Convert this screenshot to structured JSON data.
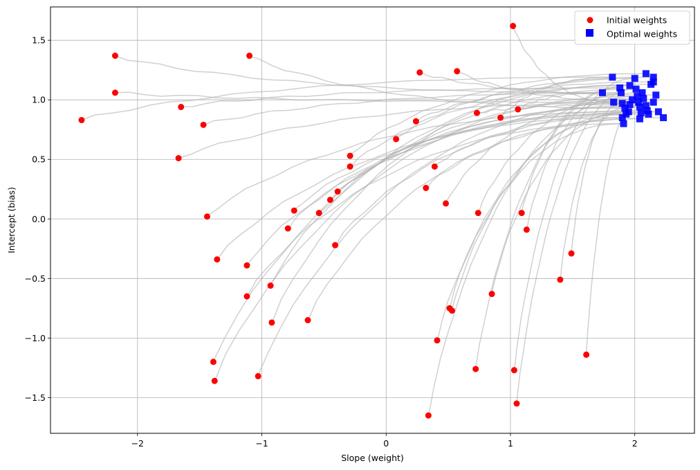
{
  "chart_data": {
    "type": "scatter",
    "title": "",
    "xlabel": "Slope (weight)",
    "ylabel": "Intercept (bias)",
    "xlim": [
      -2.7,
      2.48
    ],
    "ylim": [
      -1.8,
      1.78
    ],
    "xticks": [
      -2,
      -1,
      0,
      1,
      2
    ],
    "yticks": [
      -1.5,
      -1.0,
      -0.5,
      0.0,
      0.5,
      1.0,
      1.5
    ],
    "grid": true,
    "legend_position": "top-right",
    "colors": {
      "initial": "#ff0000",
      "optimal": "#0000ff",
      "path": "#b0b0b0",
      "grid": "#b0b0b0"
    },
    "series": [
      {
        "name": "Initial weights",
        "marker": "circle",
        "points": [
          [
            -2.45,
            0.83
          ],
          [
            -2.18,
            1.37
          ],
          [
            -2.18,
            1.06
          ],
          [
            -1.65,
            0.94
          ],
          [
            -1.47,
            0.79
          ],
          [
            -1.67,
            0.51
          ],
          [
            -1.1,
            1.37
          ],
          [
            -1.44,
            0.02
          ],
          [
            -1.36,
            -0.34
          ],
          [
            -1.12,
            -0.39
          ],
          [
            -1.12,
            -0.65
          ],
          [
            -0.93,
            -0.56
          ],
          [
            -0.92,
            -0.87
          ],
          [
            -1.39,
            -1.2
          ],
          [
            -1.38,
            -1.36
          ],
          [
            -1.03,
            -1.32
          ],
          [
            -0.79,
            -0.08
          ],
          [
            -0.74,
            0.07
          ],
          [
            -0.63,
            -0.85
          ],
          [
            -0.54,
            0.05
          ],
          [
            -0.45,
            0.16
          ],
          [
            -0.39,
            0.23
          ],
          [
            -0.41,
            -0.22
          ],
          [
            -0.29,
            0.53
          ],
          [
            -0.29,
            0.44
          ],
          [
            0.08,
            0.67
          ],
          [
            0.24,
            0.82
          ],
          [
            0.27,
            1.23
          ],
          [
            0.57,
            1.24
          ],
          [
            0.39,
            0.44
          ],
          [
            0.32,
            0.26
          ],
          [
            0.48,
            0.13
          ],
          [
            0.74,
            0.05
          ],
          [
            0.73,
            0.89
          ],
          [
            0.92,
            0.85
          ],
          [
            1.06,
            0.92
          ],
          [
            1.02,
            1.62
          ],
          [
            1.09,
            0.05
          ],
          [
            1.13,
            -0.09
          ],
          [
            1.49,
            -0.29
          ],
          [
            1.4,
            -0.51
          ],
          [
            0.85,
            -0.63
          ],
          [
            0.51,
            -0.75
          ],
          [
            0.53,
            -0.77
          ],
          [
            0.41,
            -1.02
          ],
          [
            0.72,
            -1.26
          ],
          [
            1.03,
            -1.27
          ],
          [
            1.05,
            -1.55
          ],
          [
            0.34,
            -1.65
          ],
          [
            1.61,
            -1.14
          ]
        ]
      },
      {
        "name": "Optimal weights",
        "marker": "square",
        "points": [
          [
            1.82,
            1.19
          ],
          [
            1.74,
            1.06
          ],
          [
            1.83,
            0.98
          ],
          [
            1.88,
            1.1
          ],
          [
            1.89,
            1.06
          ],
          [
            1.9,
            0.97
          ],
          [
            1.92,
            0.93
          ],
          [
            1.95,
            0.9
          ],
          [
            1.9,
            0.85
          ],
          [
            1.93,
            0.88
          ],
          [
            1.91,
            0.8
          ],
          [
            1.96,
            1.12
          ],
          [
            2.0,
            1.18
          ],
          [
            2.01,
            1.09
          ],
          [
            2.02,
            1.03
          ],
          [
            2.03,
            0.98
          ],
          [
            2.04,
            0.94
          ],
          [
            2.05,
            0.89
          ],
          [
            2.04,
            0.84
          ],
          [
            2.07,
            1.01
          ],
          [
            2.09,
            0.95
          ],
          [
            2.1,
            0.91
          ],
          [
            2.11,
            0.88
          ],
          [
            2.09,
            1.22
          ],
          [
            2.13,
            1.13
          ],
          [
            2.15,
            1.19
          ],
          [
            2.15,
            1.15
          ],
          [
            2.17,
            1.04
          ],
          [
            2.15,
            0.98
          ],
          [
            2.19,
            0.9
          ],
          [
            2.23,
            0.85
          ],
          [
            1.98,
            1.0
          ],
          [
            2.06,
            1.06
          ],
          [
            1.96,
            0.96
          ]
        ]
      }
    ]
  }
}
